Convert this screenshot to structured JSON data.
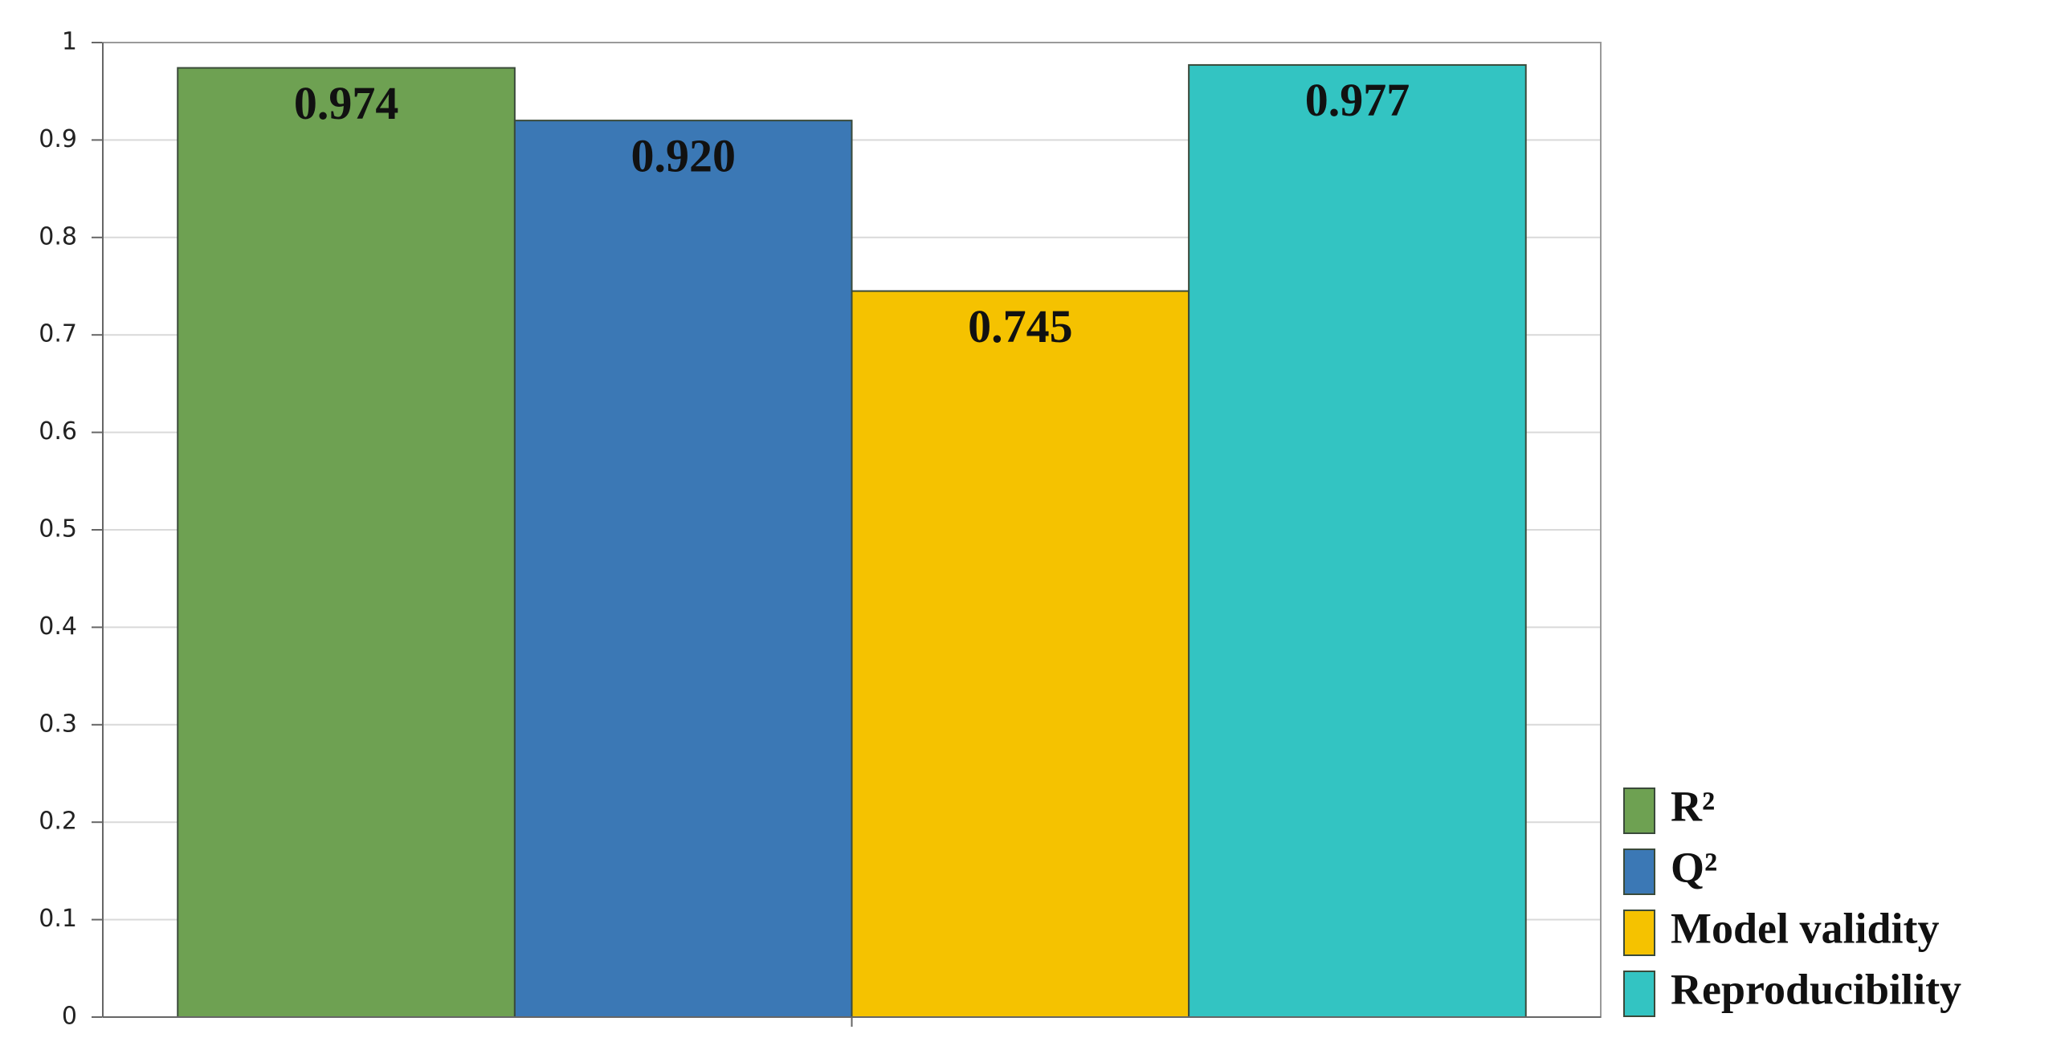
{
  "chart_data": {
    "type": "bar",
    "categories": [
      null
    ],
    "series": [
      {
        "name": "R²",
        "color": "#6ea152",
        "values": [
          0.974
        ],
        "value_labels": [
          "0.974"
        ]
      },
      {
        "name": "Q²",
        "color": "#3b78b5",
        "values": [
          0.92
        ],
        "value_labels": [
          "0.920"
        ]
      },
      {
        "name": "Model validity",
        "color": "#f5c200",
        "values": [
          0.745
        ],
        "value_labels": [
          "0.745"
        ]
      },
      {
        "name": "Reproducibility",
        "color": "#33c4c2",
        "values": [
          0.977
        ],
        "value_labels": [
          "0.977"
        ]
      }
    ],
    "ylim": [
      0,
      1
    ],
    "yticks": [
      0,
      0.1,
      0.2,
      0.3,
      0.4,
      0.5,
      0.6,
      0.7,
      0.8,
      0.9,
      1
    ],
    "grid": true,
    "legend": "lower right"
  }
}
